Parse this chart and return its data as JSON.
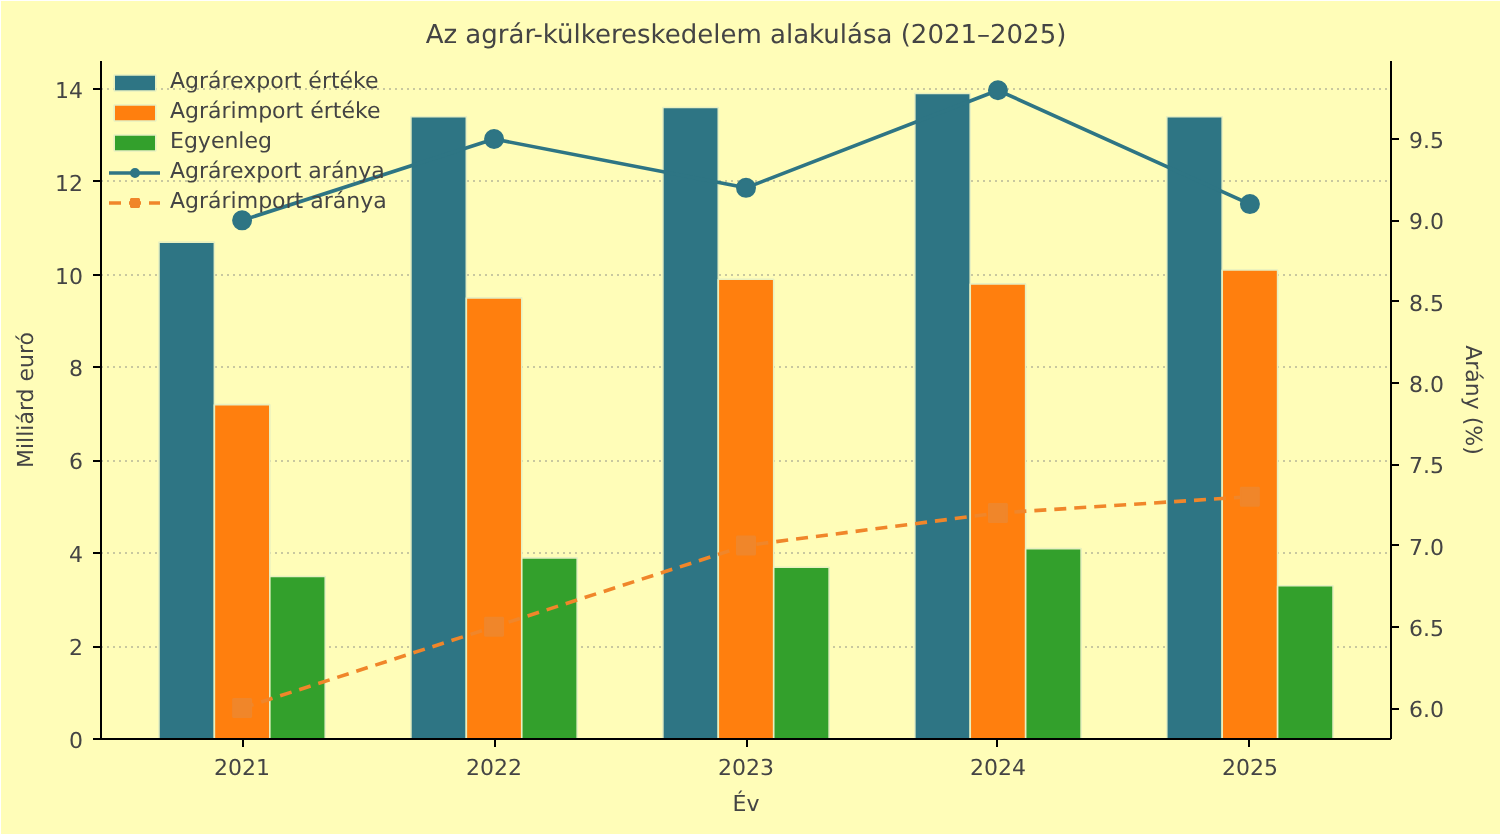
{
  "chart_data": {
    "type": "bar",
    "title": "Az agrár-külkereskedelem alakulása (2021–2025)",
    "xlabel": "Év",
    "ylabel": "Milliárd euró",
    "y2label": "Arány (%)",
    "categories": [
      "2021",
      "2022",
      "2023",
      "2024",
      "2025"
    ],
    "series": [
      {
        "name": "Agrárexport értéke",
        "color": "#2e7584",
        "values": [
          10.7,
          13.4,
          13.6,
          13.9,
          13.4
        ]
      },
      {
        "name": "Agrárimport értéke",
        "color": "#ff7f0e",
        "values": [
          7.2,
          9.5,
          9.9,
          9.8,
          10.1
        ]
      },
      {
        "name": "Egyenleg",
        "color": "#33a02c",
        "values": [
          3.5,
          3.9,
          3.7,
          4.1,
          3.3
        ]
      },
      {
        "name": "Agrárexport aránya",
        "type": "line",
        "axis": "y2",
        "color": "#2e7584",
        "marker": "circle",
        "line_style": "solid",
        "values": [
          9.0,
          9.5,
          9.2,
          9.8,
          9.1
        ]
      },
      {
        "name": "Agrárimport aránya",
        "type": "line",
        "axis": "y2",
        "color": "#f0862a",
        "marker": "square",
        "line_style": "dashed",
        "values": [
          6.0,
          6.5,
          7.0,
          7.2,
          7.3
        ]
      }
    ],
    "ylim": [
      0,
      14.6
    ],
    "yticks": [
      0,
      2,
      4,
      6,
      8,
      10,
      12,
      14
    ],
    "y2lim": [
      5.81,
      9.98
    ],
    "y2ticks": [
      {
        "value": 6,
        "label": "6.0"
      },
      6.5,
      {
        "value": 7,
        "label": "7.0"
      },
      7.5,
      {
        "value": 8,
        "label": "8.0"
      },
      8.5,
      {
        "value": 9,
        "label": "9.0"
      },
      9.5
    ],
    "grid": "y",
    "legend": "top left"
  }
}
